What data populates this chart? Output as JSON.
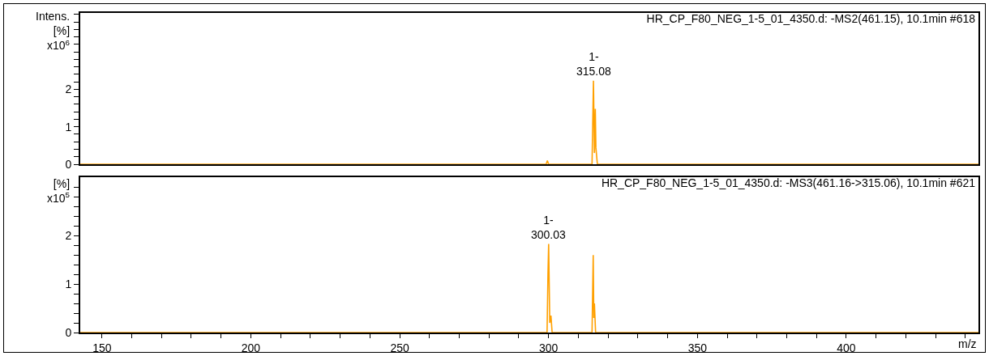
{
  "chart_data": [
    {
      "type": "line",
      "title": "HR_CP_F80_NEG_1-5_01_4350.d: -MS2(461.15), 10.1min #618",
      "ylabel": "Intens.\n[%]\nx10$^{6}$",
      "tick_labels": "y",
      "grid": false,
      "marker": "none",
      "line_style": "solid",
      "xlim": [
        142.7,
        444.4
      ],
      "ylim": [
        0,
        4.04
      ],
      "yticks": [
        0,
        {
          "value": 0.2,
          "label": null
        },
        {
          "value": 0.4,
          "label": null
        },
        {
          "value": 0.6,
          "label": null
        },
        {
          "value": 0.8,
          "label": null
        },
        1,
        {
          "value": 1.2,
          "label": null
        },
        {
          "value": 1.4,
          "label": null
        },
        {
          "value": 1.6,
          "label": null
        },
        {
          "value": 1.8,
          "label": null
        },
        2,
        {
          "value": 2.2,
          "label": null
        },
        {
          "value": 2.4,
          "label": null
        },
        {
          "value": 2.6,
          "label": null
        },
        {
          "value": 2.8,
          "label": null
        },
        {
          "value": 3.0,
          "label": null
        },
        {
          "value": 3.2,
          "label": null
        },
        {
          "value": 3.4,
          "label": null
        },
        {
          "value": 3.6,
          "label": null
        },
        {
          "value": 3.8,
          "label": null
        },
        {
          "value": 4.0,
          "label": null
        }
      ],
      "series": [
        {
          "color": "#ffa000",
          "x": [
            142.7,
            299.2,
            299.6,
            300.0,
            314.6,
            315.08,
            315.4,
            315.7,
            315.9,
            316.4,
            444.4
          ],
          "values": [
            0,
            0,
            0.1,
            0,
            0,
            2.23,
            0.3,
            1.48,
            0.44,
            0,
            0
          ]
        }
      ],
      "annotations": [
        {
          "text": "1-\n315.08",
          "x": 315.08,
          "y": 2.23
        }
      ]
    },
    {
      "type": "line",
      "title": "HR_CP_F80_NEG_1-5_01_4350.d: -MS3(461.16->315.06), 10.1min #621",
      "ylabel": "[%]\nx10$^{5}$",
      "xlabel": "m/z",
      "grid": false,
      "marker": "none",
      "line_style": "solid",
      "xlim": [
        142.7,
        444.4
      ],
      "ylim": [
        0,
        3.21
      ],
      "xticks": [
        150,
        {
          "value": 160,
          "label": null
        },
        {
          "value": 170,
          "label": null
        },
        {
          "value": 180,
          "label": null
        },
        {
          "value": 190,
          "label": null
        },
        200,
        {
          "value": 210,
          "label": null
        },
        {
          "value": 220,
          "label": null
        },
        {
          "value": 230,
          "label": null
        },
        {
          "value": 240,
          "label": null
        },
        250,
        {
          "value": 260,
          "label": null
        },
        {
          "value": 270,
          "label": null
        },
        {
          "value": 280,
          "label": null
        },
        {
          "value": 290,
          "label": null
        },
        300,
        {
          "value": 310,
          "label": null
        },
        {
          "value": 320,
          "label": null
        },
        {
          "value": 330,
          "label": null
        },
        {
          "value": 340,
          "label": null
        },
        350,
        {
          "value": 360,
          "label": null
        },
        {
          "value": 370,
          "label": null
        },
        {
          "value": 380,
          "label": null
        },
        {
          "value": 390,
          "label": null
        },
        400,
        {
          "value": 410,
          "label": null
        },
        {
          "value": 420,
          "label": null
        },
        {
          "value": 430,
          "label": null
        },
        {
          "value": 440,
          "label": null
        }
      ],
      "yticks": [
        0,
        {
          "value": 0.2,
          "label": null
        },
        {
          "value": 0.4,
          "label": null
        },
        {
          "value": 0.6,
          "label": null
        },
        {
          "value": 0.8,
          "label": null
        },
        1,
        {
          "value": 1.2,
          "label": null
        },
        {
          "value": 1.4,
          "label": null
        },
        {
          "value": 1.6,
          "label": null
        },
        {
          "value": 1.8,
          "label": null
        },
        2,
        {
          "value": 2.2,
          "label": null
        },
        {
          "value": 2.4,
          "label": null
        },
        {
          "value": 2.6,
          "label": null
        },
        {
          "value": 2.8,
          "label": null
        },
        {
          "value": 3.0,
          "label": null
        }
      ],
      "series": [
        {
          "color": "#ffa000",
          "x": [
            142.7,
            299.5,
            299.8,
            300.03,
            300.4,
            300.8,
            301.2,
            314.6,
            315.0,
            315.2,
            315.4,
            315.8,
            444.4
          ],
          "values": [
            0,
            0,
            1.2,
            1.83,
            0.2,
            0.35,
            0,
            0,
            1.6,
            0.3,
            0.6,
            0,
            0
          ]
        }
      ],
      "annotations": [
        {
          "text": "1-\n300.03",
          "x": 300.03,
          "y": 1.83
        }
      ]
    }
  ]
}
